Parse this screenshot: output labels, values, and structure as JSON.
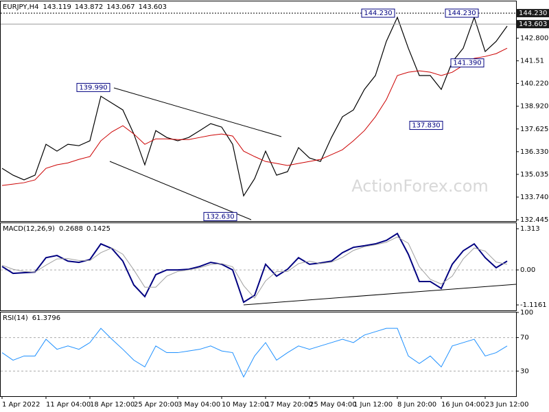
{
  "chart_data": [
    {
      "type": "line",
      "title": "EURJPY,H4",
      "ohlc": [
        143.119,
        143.872,
        143.067,
        143.603
      ],
      "watermark": "ActionForex.com",
      "grid": false,
      "ylim": [
        132.37,
        144.9
      ],
      "yticks": [
        132.445,
        {
          "value": 133.74,
          "label": "133.740"
        },
        135.035,
        {
          "value": 136.33,
          "label": "136.330"
        },
        137.625,
        {
          "value": 138.92,
          "label": "138.920"
        },
        {
          "value": 140.22,
          "label": "140.220"
        },
        141.51,
        {
          "value": 142.8,
          "label": "142.800"
        }
      ],
      "price_markers": [
        {
          "value": 144.23,
          "label": "144.230"
        },
        143.603
      ],
      "annotations": [
        {
          "value": 144.23,
          "label": "144.230"
        },
        {
          "value": 144.23,
          "label": "144.230"
        },
        {
          "value": 139.99,
          "label": "139.990"
        },
        {
          "value": 132.63,
          "label": "132.630"
        },
        {
          "value": 141.39,
          "label": "141.390"
        },
        {
          "value": 137.83,
          "label": "137.830"
        }
      ],
      "series": [
        {
          "color": "#000000",
          "values": [
            135.38,
            134.99,
            134.72,
            134.99,
            136.75,
            136.36,
            136.75,
            136.67,
            136.95,
            139.49,
            139.1,
            138.71,
            137.34,
            135.58,
            137.53,
            137.14,
            136.95,
            137.14,
            137.53,
            137.93,
            137.73,
            136.75,
            133.81,
            134.79,
            136.36,
            134.99,
            135.19,
            136.56,
            135.97,
            135.77,
            137.14,
            138.32,
            138.71,
            139.88,
            140.67,
            142.62,
            143.99,
            142.23,
            140.67,
            140.67,
            139.88,
            141.45,
            142.23,
            143.99,
            142.04,
            142.62,
            143.49
          ]
        },
        {
          "color": "#cc0000",
          "values": [
            134.4,
            134.48,
            134.56,
            134.72,
            135.38,
            135.58,
            135.69,
            135.89,
            136.05,
            136.95,
            137.46,
            137.81,
            137.34,
            136.75,
            137.06,
            137.06,
            137.02,
            137.02,
            137.14,
            137.26,
            137.34,
            137.22,
            136.36,
            136.05,
            135.77,
            135.66,
            135.54,
            135.66,
            135.77,
            135.89,
            136.16,
            136.44,
            136.95,
            137.53,
            138.32,
            139.3,
            140.67,
            140.86,
            140.94,
            140.86,
            140.67,
            140.86,
            141.25,
            141.65,
            141.76,
            141.92,
            142.23
          ]
        }
      ]
    },
    {
      "type": "line",
      "title": "MACD(12,26,9)",
      "readings": [
        0.2688,
        0.1425
      ],
      "grid": true,
      "ylim": [
        -1.29,
        1.49
      ],
      "yticks": [
        -1.1161,
        {
          "value": 0,
          "label": "0.00"
        },
        1.313
      ],
      "series": [
        {
          "color": "#000080",
          "values": [
            0.11,
            -0.11,
            -0.09,
            -0.07,
            0.39,
            0.46,
            0.28,
            0.24,
            0.33,
            0.83,
            0.68,
            0.28,
            -0.48,
            -0.85,
            -0.15,
            0,
            0,
            0.02,
            0.11,
            0.24,
            0.18,
            0,
            -1.03,
            -0.81,
            0.18,
            -0.2,
            0.02,
            0.39,
            0.18,
            0.22,
            0.28,
            0.55,
            0.72,
            0.77,
            0.83,
            0.94,
            1.16,
            0.5,
            -0.37,
            -0.37,
            -0.59,
            0.18,
            0.61,
            0.83,
            0.39,
            0.07,
            0.28
          ]
        },
        {
          "color": "#a0a0a0",
          "values": [
            0.15,
            0.02,
            -0.05,
            -0.07,
            0.15,
            0.35,
            0.36,
            0.3,
            0.3,
            0.55,
            0.7,
            0.5,
            0.0,
            -0.55,
            -0.55,
            -0.2,
            -0.05,
            0.0,
            0.07,
            0.17,
            0.2,
            0.1,
            -0.5,
            -0.9,
            -0.35,
            -0.05,
            -0.05,
            0.2,
            0.28,
            0.2,
            0.25,
            0.4,
            0.62,
            0.74,
            0.8,
            0.88,
            1.05,
            0.85,
            0.1,
            -0.3,
            -0.45,
            -0.2,
            0.35,
            0.7,
            0.6,
            0.25,
            0.18
          ]
        }
      ]
    },
    {
      "type": "line",
      "title": "RSI(14)",
      "readings": [
        61.3796
      ],
      "grid": true,
      "ylim": [
        0,
        100
      ],
      "yticks": [
        30,
        70,
        100
      ],
      "categories": [
        "1 Apr 2022",
        null,
        null,
        null,
        "11 Apr 04:00",
        null,
        null,
        null,
        "18 Apr 12:00",
        null,
        null,
        null,
        "25 Apr 20:00",
        null,
        null,
        null,
        "3 May 04:00",
        null,
        null,
        null,
        "10 May 12:00",
        null,
        null,
        null,
        "17 May 20:00",
        null,
        null,
        null,
        "25 May 04:00",
        null,
        null,
        null,
        "1 Jun 12:00",
        null,
        null,
        null,
        "8 Jun 20:00",
        null,
        null,
        null,
        "16 Jun 04:00",
        null,
        null,
        null,
        "23 Jun 12:00",
        null,
        null
      ],
      "series": [
        {
          "color": "#1e90ff",
          "values": [
            52,
            43,
            48,
            48,
            68,
            56,
            60,
            56,
            64,
            81,
            68,
            56,
            43,
            35,
            60,
            52,
            52,
            54,
            56,
            60,
            54,
            52,
            23,
            48,
            64,
            43,
            52,
            60,
            56,
            60,
            64,
            68,
            64,
            73,
            77,
            81,
            81,
            48,
            39,
            48,
            35,
            60,
            64,
            68,
            48,
            52,
            60
          ]
        }
      ]
    }
  ]
}
